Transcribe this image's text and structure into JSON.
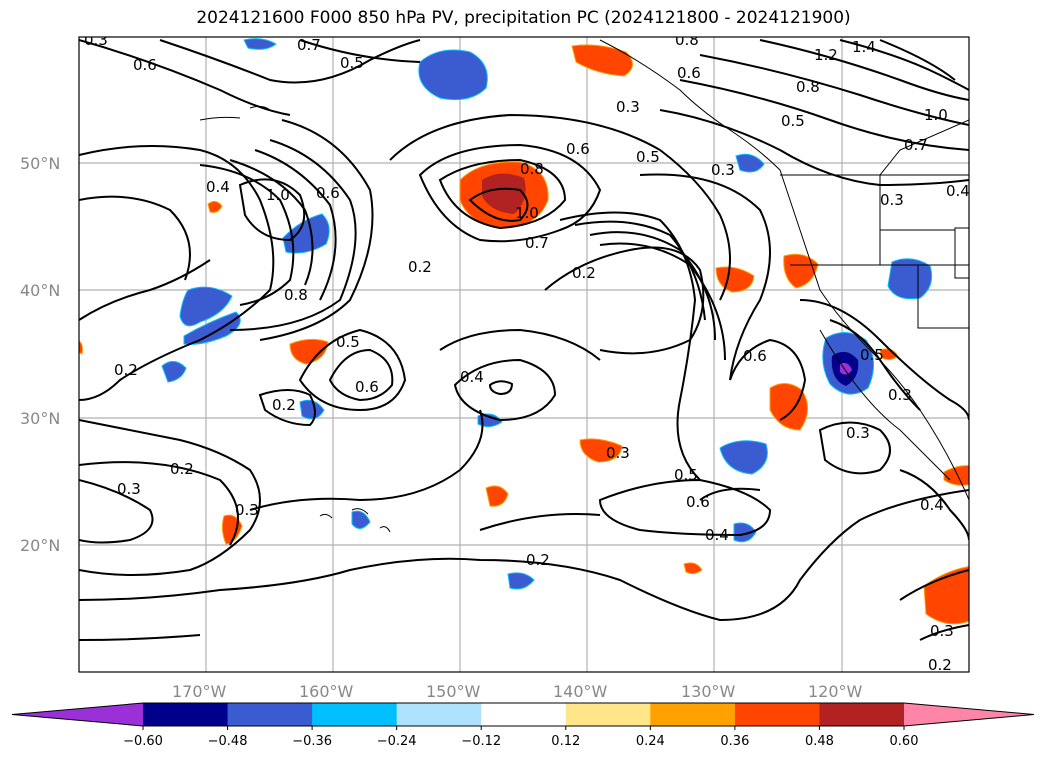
{
  "title": "2024121600 F000 850 hPa PV, precipitation PC (2024121800 - 2024121900)",
  "map": {
    "lat_labels": [
      "50°N",
      "40°N",
      "30°N",
      "20°N"
    ],
    "lon_labels": [
      "170°W",
      "160°W",
      "150°W",
      "140°W",
      "130°W",
      "120°W"
    ],
    "contour_labels": [
      "0.3",
      "0.6",
      "0.7",
      "0.5",
      "0.8",
      "1.2",
      "1.4",
      "0.6",
      "0.3",
      "0.8",
      "0.5",
      "1.0",
      "0.7",
      "0.6",
      "0.5",
      "0.3",
      "0.3",
      "0.4",
      "0.8",
      "1.0",
      "0.6",
      "0.4",
      "1.0",
      "0.7",
      "0.2",
      "0.2",
      "0.8",
      "0.5",
      "0.6",
      "0.2",
      "0.4",
      "0.6",
      "0.5",
      "0.3",
      "0.3",
      "0.2",
      "0.3",
      "0.2",
      "0.3",
      "0.3",
      "0.5",
      "0.6",
      "0.4",
      "0.4",
      "0.2",
      "0.3",
      "0.2"
    ]
  },
  "colorbar": {
    "ticks": [
      "−0.60",
      "−0.48",
      "−0.36",
      "−0.24",
      "−0.12",
      "0.12",
      "0.24",
      "0.36",
      "0.48",
      "0.60"
    ],
    "colors": [
      "#9b30d9",
      "#00008b",
      "#3b5bd0",
      "#00bfff",
      "#aee1fb",
      "#ffffff",
      "#ffe68a",
      "#ffa200",
      "#ff4500",
      "#b22222",
      "#ff85a8"
    ]
  }
}
